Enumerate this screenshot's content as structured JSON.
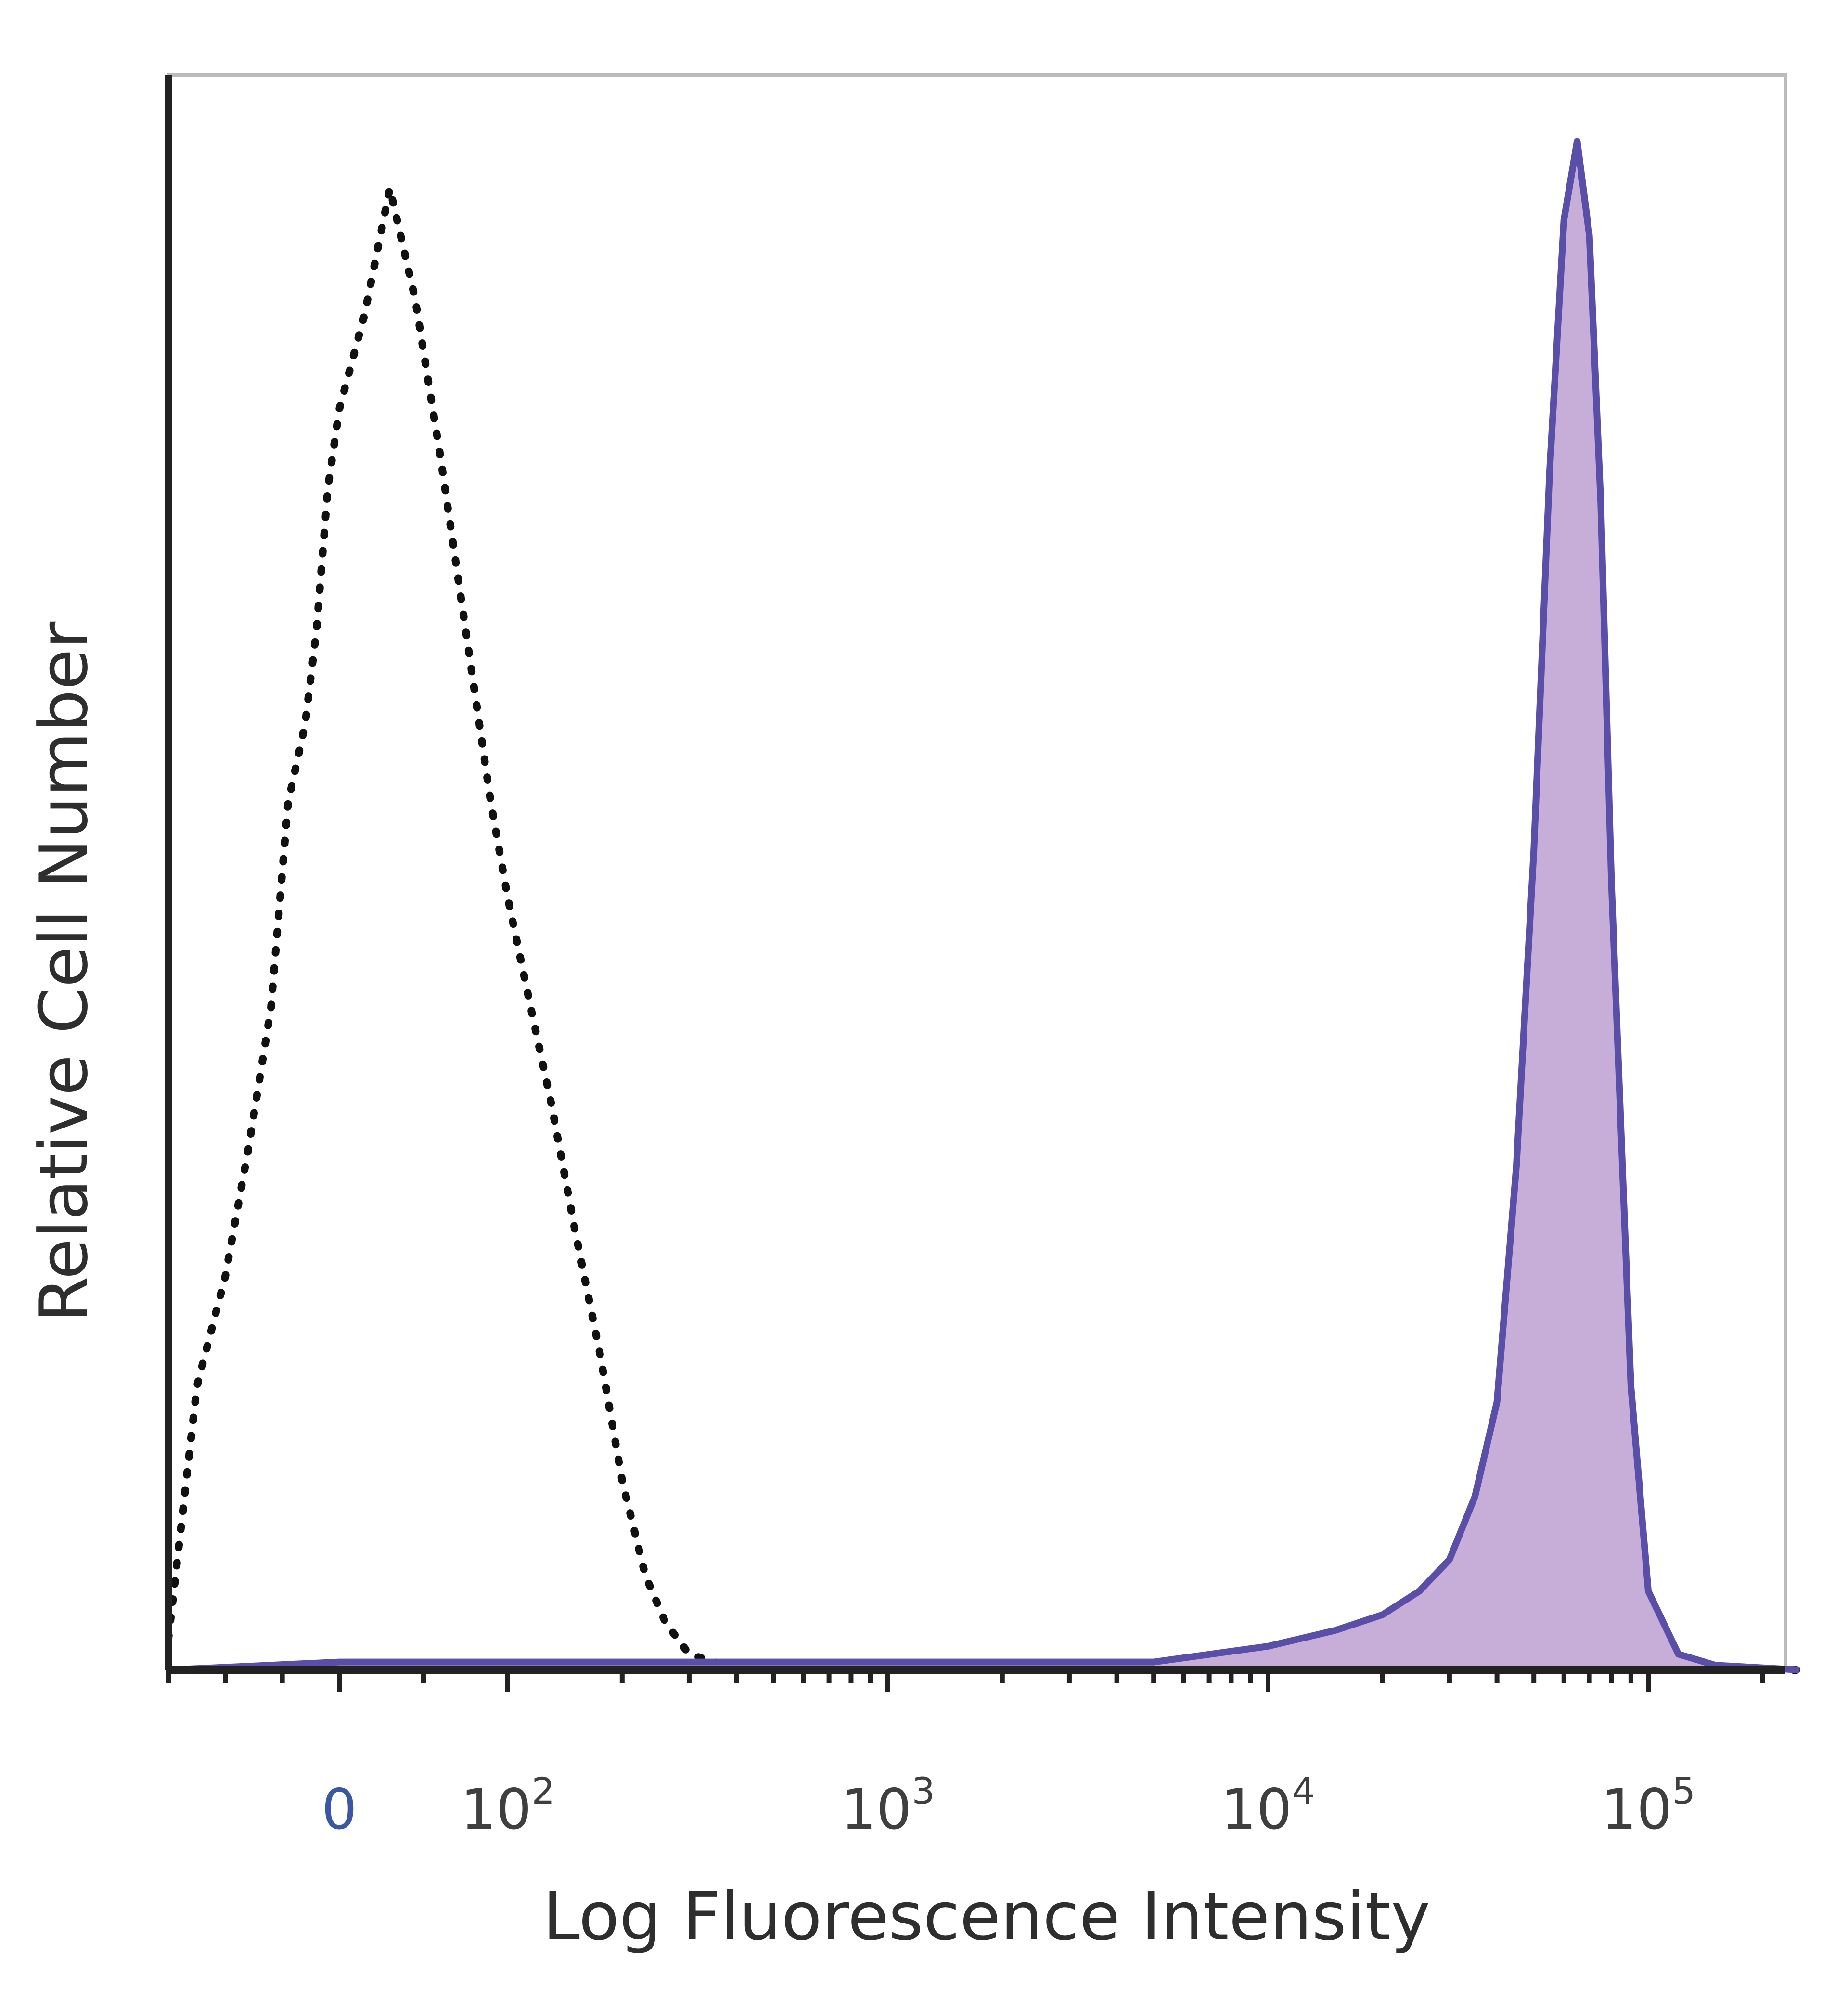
{
  "chart_data": {
    "type": "area",
    "title": "",
    "xlabel": "Log Fluorescence Intensity",
    "ylabel": "Relative Cell Number",
    "x_scale": "biexponential",
    "x_ticks": [
      {
        "value": 0,
        "label": "0"
      },
      {
        "value": 100,
        "label": "10",
        "exp": "2"
      },
      {
        "value": 1000,
        "label": "10",
        "exp": "3"
      },
      {
        "value": 10000,
        "label": "10",
        "exp": "4"
      },
      {
        "value": 100000,
        "label": "10",
        "exp": "5"
      }
    ],
    "xlim": [
      -300,
      250000
    ],
    "ylim": [
      0,
      100
    ],
    "grid": false,
    "legend": "none",
    "colors": {
      "stained_line": "#5a4fa8",
      "stained_fill": "#c7aed8",
      "isotype_line": "#111111",
      "axis": "#222222",
      "frame": "#bbbbbb"
    },
    "series": [
      {
        "style": "dotted",
        "x": [
          -300,
          -250,
          -200,
          -160,
          -120,
          -90,
          -60,
          -40,
          -20,
          0,
          15,
          30,
          45,
          60,
          75,
          90,
          100,
          115,
          130,
          150,
          175,
          200,
          230,
          260,
          300,
          350,
          400,
          500,
          700,
          1000,
          3000,
          10000,
          100000,
          250000
        ],
        "y": [
          2,
          18,
          25,
          33,
          42,
          55,
          60,
          66,
          75,
          80,
          86,
          94,
          87,
          77,
          66,
          55,
          49,
          42,
          36,
          28,
          20,
          12,
          6,
          3,
          1,
          0.5,
          0,
          0,
          0,
          0,
          0,
          0,
          0,
          0
        ]
      },
      {
        "style": "solid-filled",
        "x": [
          -300,
          0,
          100,
          1000,
          5000,
          10000,
          15000,
          20000,
          25000,
          30000,
          35000,
          40000,
          45000,
          50000,
          55000,
          60000,
          65000,
          70000,
          75000,
          80000,
          90000,
          100000,
          120000,
          150000,
          250000
        ],
        "y": [
          0,
          0.5,
          0.5,
          0.5,
          0.5,
          1.5,
          2.5,
          3.5,
          5,
          7,
          11,
          17,
          32,
          52,
          76,
          92,
          97,
          91,
          74,
          50,
          18,
          5,
          1,
          0.3,
          0
        ]
      }
    ]
  }
}
